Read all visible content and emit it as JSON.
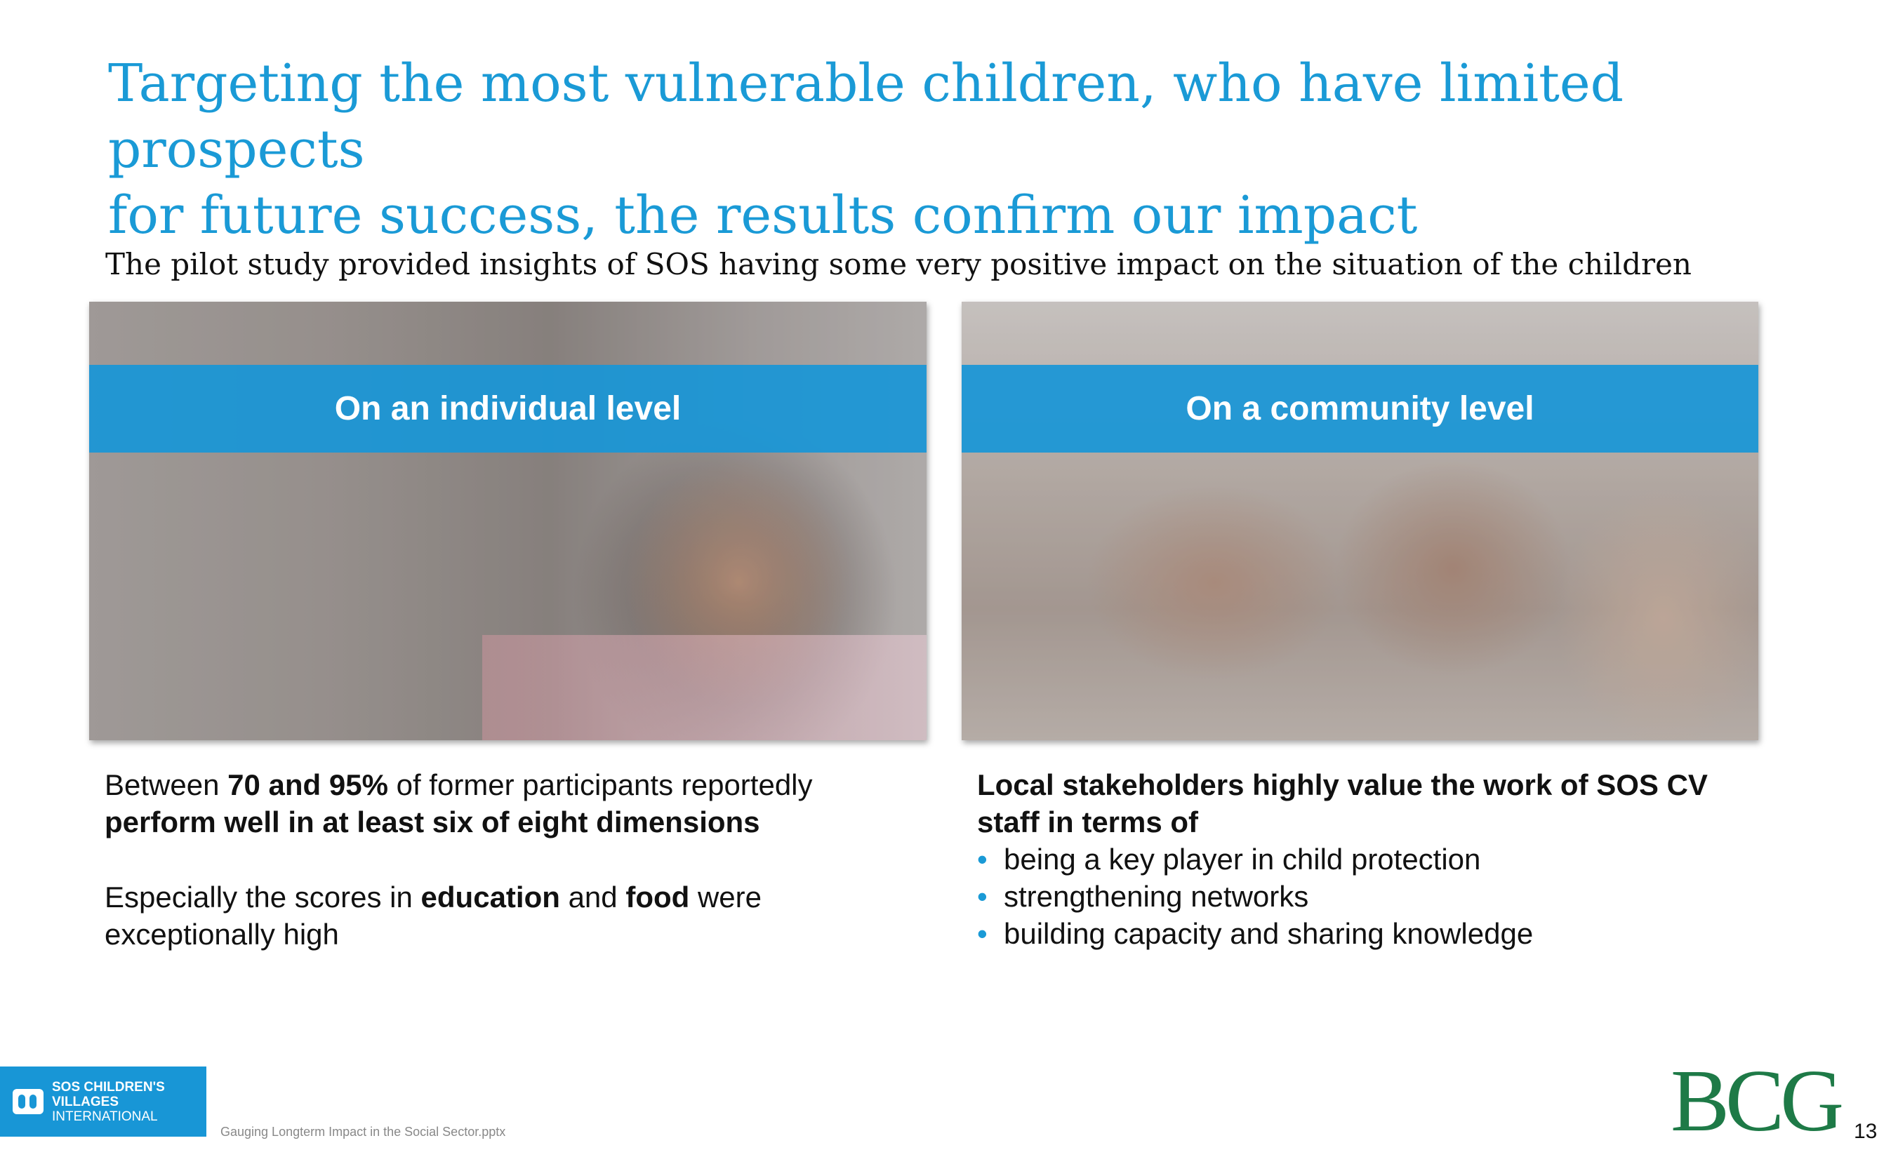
{
  "slide": {
    "title_line1": "Targeting the most vulnerable children, who have limited prospects",
    "title_line2": "for future success, the results confirm our impact",
    "subtitle": "The pilot study provided insights of SOS having some very positive impact on the situation of the children"
  },
  "left_panel": {
    "band_label": "On an individual level",
    "p1_a": "Between ",
    "p1_b": "70 and 95%",
    "p1_c": " of former participants reportedly ",
    "p1_d": "perform well in at least six of eight dimensions",
    "p2_a": "Especially the scores in ",
    "p2_b": "education",
    "p2_c": " and ",
    "p2_d": "food",
    "p2_e": " were exceptionally high"
  },
  "right_panel": {
    "band_label": "On a community level",
    "lead": "Local stakeholders highly value the work of SOS CV staff in terms of",
    "bullet_char": "•",
    "bullets": [
      "being a key player in child protection",
      "strengthening networks",
      "building capacity and sharing knowledge"
    ]
  },
  "footer": {
    "sos_line1": "SOS CHILDREN'S",
    "sos_line2": "VILLAGES",
    "sos_line3": "INTERNATIONAL",
    "file_name": "Gauging Longterm Impact in the Social Sector.pptx",
    "bcg_logo": "BCG",
    "page_number": "13"
  },
  "colors": {
    "title": "#1a9ad6",
    "band": "#1896d6",
    "bcg_green": "#1e7a47"
  }
}
